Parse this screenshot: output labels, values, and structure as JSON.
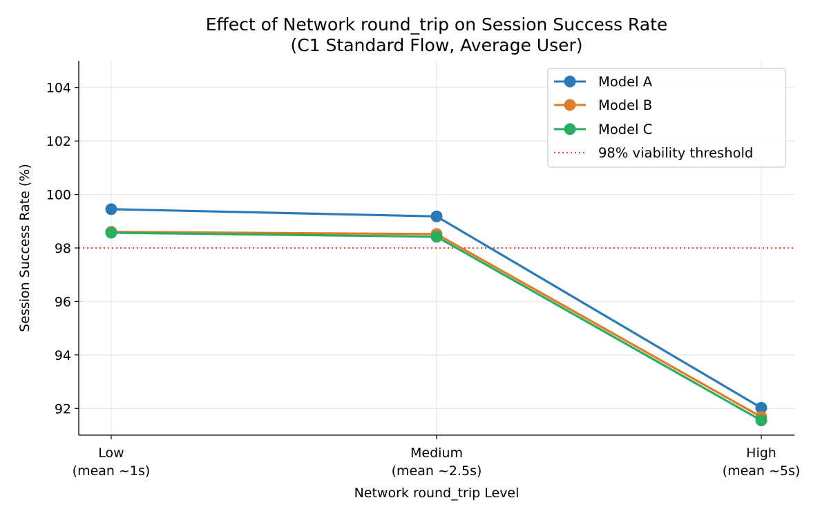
{
  "chart_data": {
    "type": "line",
    "title": "Effect of Network round_trip on Session Success Rate",
    "subtitle": "(C1 Standard Flow, Average User)",
    "xlabel": "Network round_trip Level",
    "ylabel": "Session Success Rate (%)",
    "categories": [
      {
        "line1": "Low",
        "line2": "(mean ~1s)"
      },
      {
        "line1": "Medium",
        "line2": "(mean ~2.5s)"
      },
      {
        "line1": "High",
        "line2": "(mean ~5s)"
      }
    ],
    "ylim": [
      91.0,
      105.0
    ],
    "yticks": [
      92,
      94,
      96,
      98,
      100,
      102,
      104
    ],
    "grid": true,
    "legend_position": "top-right",
    "series": [
      {
        "name": "Model A",
        "color": "#2a7ab9",
        "values": [
          99.45,
          99.18,
          92.02
        ]
      },
      {
        "name": "Model B",
        "color": "#e07b28",
        "values": [
          98.6,
          98.52,
          91.68
        ]
      },
      {
        "name": "Model C",
        "color": "#27ae60",
        "values": [
          98.57,
          98.42,
          91.55
        ]
      }
    ],
    "threshold": {
      "label": "98% viability threshold",
      "value": 98,
      "color": "#e74c3c"
    }
  }
}
